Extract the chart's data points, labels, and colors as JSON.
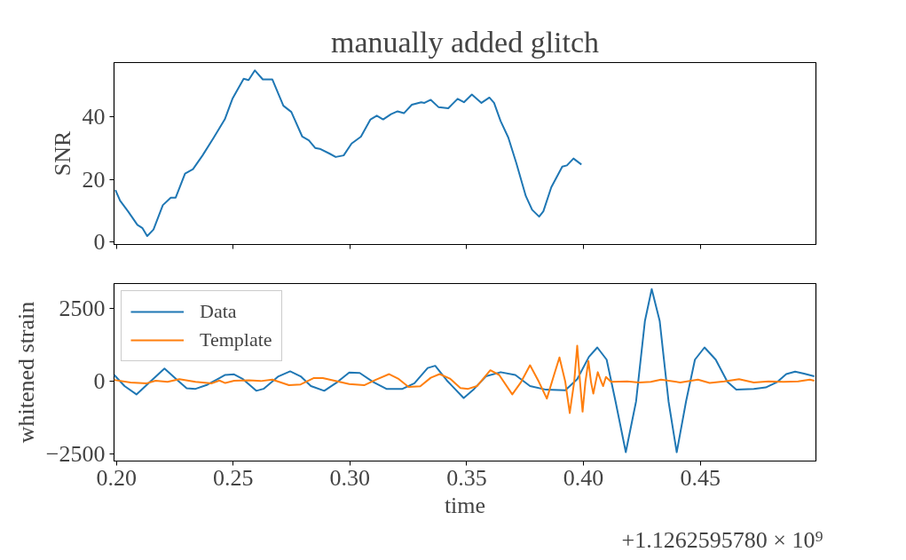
{
  "chart_data": [
    {
      "type": "line",
      "title": "manually added glitch",
      "ylabel": "SNR",
      "xlim": [
        0.199,
        0.4995
      ],
      "ylim": [
        -0.8,
        57.4
      ],
      "xticks": [
        0.2,
        0.25,
        0.3,
        0.35,
        0.4,
        0.45
      ],
      "yticks": [
        0,
        20,
        40
      ],
      "tick_labels": "y",
      "grid": false,
      "legend": false,
      "series": [
        {
          "color": "#1f77b4",
          "x": [
            0.1996,
            0.2016,
            0.205,
            0.209,
            0.2111,
            0.2132,
            0.2159,
            0.2199,
            0.2233,
            0.2254,
            0.2294,
            0.2328,
            0.2369,
            0.2417,
            0.2464,
            0.2498,
            0.2545,
            0.2566,
            0.2593,
            0.2627,
            0.2668,
            0.2715,
            0.2749,
            0.2796,
            0.2824,
            0.2851,
            0.2871,
            0.2912,
            0.2939,
            0.2973,
            0.3007,
            0.3047,
            0.3088,
            0.3115,
            0.3142,
            0.3176,
            0.3204,
            0.3231,
            0.3265,
            0.3305,
            0.3319,
            0.3346,
            0.338,
            0.3421,
            0.3461,
            0.3488,
            0.3522,
            0.3563,
            0.3597,
            0.3617,
            0.3645,
            0.3678,
            0.3712,
            0.3753,
            0.378,
            0.381,
            0.3828,
            0.3862,
            0.3909,
            0.3929,
            0.3957,
            0.3991
          ],
          "values": [
            16.6,
            13.2,
            9.8,
            5.5,
            4.5,
            1.9,
            4.0,
            11.8,
            14.2,
            14.2,
            21.9,
            23.3,
            27.7,
            33.4,
            39.2,
            46.0,
            52.2,
            51.8,
            54.9,
            52.0,
            52.0,
            43.6,
            41.6,
            33.7,
            32.5,
            30.1,
            29.8,
            28.3,
            27.2,
            27.7,
            31.5,
            33.7,
            39.2,
            40.4,
            39.2,
            40.9,
            41.8,
            41.2,
            43.9,
            44.7,
            44.5,
            45.5,
            43.1,
            42.8,
            45.8,
            44.7,
            47.2,
            44.5,
            46.2,
            44.5,
            38.7,
            33.4,
            25.3,
            14.7,
            10.3,
            8.1,
            9.8,
            17.5,
            24.1,
            24.5,
            26.7,
            24.8
          ]
        }
      ]
    },
    {
      "type": "line",
      "xlabel": "time",
      "ylabel": "whitened strain",
      "annotations": [
        "+1.1262595780 × 10⁹"
      ],
      "xlim": [
        0.199,
        0.4995
      ],
      "ylim": [
        -2730,
        3350
      ],
      "yticks": [
        {
          "value": -2500,
          "label": "−2500"
        },
        0,
        2500
      ],
      "xticks": [
        {
          "value": 0.2,
          "label": "0.20"
        },
        0.25,
        {
          "value": 0.3,
          "label": "0.30"
        },
        0.35,
        {
          "value": 0.4,
          "label": "0.40"
        },
        0.45
      ],
      "grid": false,
      "legend": "top left",
      "series": [
        {
          "name": "Data",
          "color": "#1f77b4",
          "x": [
            0.1991,
            0.2035,
            0.2086,
            0.2137,
            0.2206,
            0.2263,
            0.2301,
            0.2339,
            0.239,
            0.2434,
            0.2466,
            0.2504,
            0.2542,
            0.2599,
            0.263,
            0.2694,
            0.2744,
            0.2789,
            0.2833,
            0.289,
            0.2947,
            0.2997,
            0.3042,
            0.3099,
            0.3156,
            0.3225,
            0.3276,
            0.3333,
            0.3365,
            0.3415,
            0.3487,
            0.3532,
            0.3582,
            0.3645,
            0.3708,
            0.3771,
            0.384,
            0.3922,
            0.3973,
            0.4023,
            0.4059,
            0.4099,
            0.4137,
            0.4181,
            0.4225,
            0.4263,
            0.4292,
            0.4326,
            0.4364,
            0.4399,
            0.4439,
            0.4477,
            0.4518,
            0.4566,
            0.4616,
            0.4654,
            0.4729,
            0.478,
            0.483,
            0.4868,
            0.4906,
            0.4944,
            0.4988
          ],
          "values": [
            219,
            -162,
            -447,
            -67,
            438,
            29,
            -238,
            -257,
            -114,
            76,
            219,
            238,
            76,
            -324,
            -257,
            171,
            343,
            171,
            -162,
            -324,
            -19,
            305,
            286,
            -19,
            -257,
            -257,
            -67,
            457,
            533,
            29,
            -571,
            -257,
            171,
            314,
            219,
            -162,
            -286,
            -305,
            76,
            838,
            1161,
            743,
            -685,
            -2428,
            -685,
            2075,
            3161,
            2075,
            -685,
            -2428,
            -685,
            743,
            1161,
            743,
            -19,
            -286,
            -257,
            -209,
            -19,
            248,
            333,
            267,
            171
          ]
        },
        {
          "name": "Template",
          "color": "#ff7f0e",
          "x": [
            0.1991,
            0.2061,
            0.213,
            0.2168,
            0.2219,
            0.227,
            0.2339,
            0.2409,
            0.2441,
            0.2466,
            0.2504,
            0.2568,
            0.2618,
            0.2668,
            0.2739,
            0.2789,
            0.2846,
            0.2884,
            0.2947,
            0.2997,
            0.3061,
            0.3111,
            0.3168,
            0.3206,
            0.3251,
            0.3301,
            0.3346,
            0.3384,
            0.3428,
            0.3473,
            0.3506,
            0.3544,
            0.3601,
            0.3639,
            0.3695,
            0.3733,
            0.3771,
            0.3809,
            0.3843,
            0.3872,
            0.3897,
            0.3922,
            0.3941,
            0.396,
            0.3973,
            0.3985,
            0.3996,
            0.4008,
            0.4021,
            0.4032,
            0.4042,
            0.4052,
            0.4061,
            0.4074,
            0.4084,
            0.4096,
            0.4118,
            0.4187,
            0.4238,
            0.4288,
            0.4332,
            0.4414,
            0.449,
            0.454,
            0.4603,
            0.4666,
            0.4729,
            0.4792,
            0.4856,
            0.4919,
            0.4969,
            0.4988
          ],
          "values": [
            48,
            -38,
            -67,
            19,
            -19,
            76,
            -19,
            -67,
            29,
            -57,
            19,
            38,
            10,
            57,
            -133,
            -105,
            114,
            114,
            0,
            -95,
            -133,
            57,
            248,
            95,
            -190,
            -171,
            124,
            248,
            95,
            -228,
            -257,
            -162,
            381,
            219,
            -447,
            -19,
            552,
            -19,
            -590,
            171,
            819,
            -19,
            -1085,
            -19,
            1219,
            -19,
            -1038,
            -19,
            695,
            -19,
            -419,
            -19,
            314,
            29,
            -162,
            152,
            -19,
            0,
            -38,
            -19,
            57,
            -38,
            57,
            -57,
            0,
            76,
            -38,
            0,
            -19,
            0,
            57,
            19
          ]
        }
      ]
    }
  ]
}
